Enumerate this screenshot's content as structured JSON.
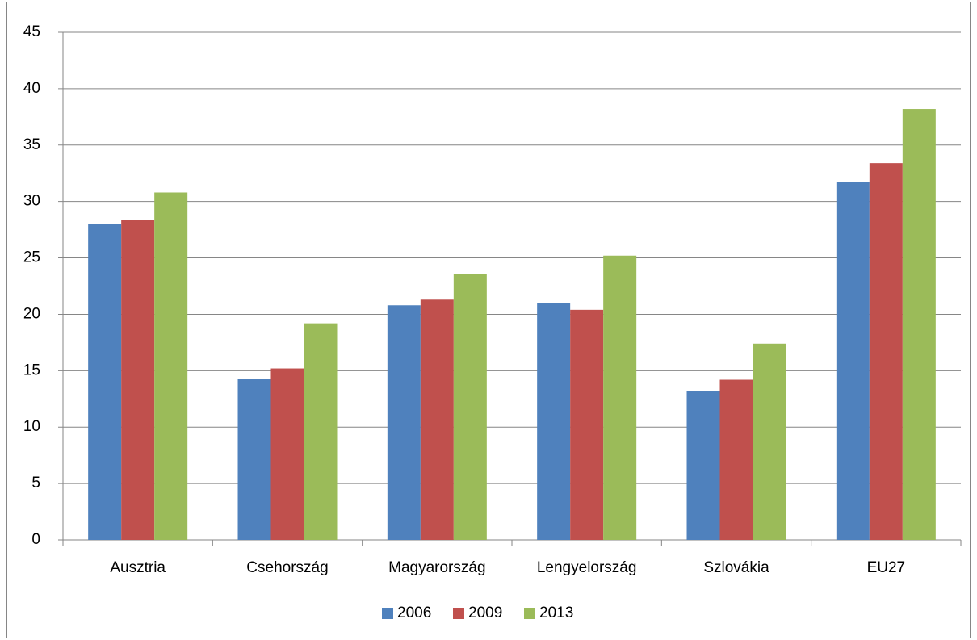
{
  "chart_data": {
    "type": "bar",
    "categories": [
      "Ausztria",
      "Csehország",
      "Magyarország",
      "Lengyelország",
      "Szlovákia",
      "EU27"
    ],
    "series": [
      {
        "name": "2006",
        "color": "#4f81bd",
        "values": [
          28.0,
          14.3,
          20.8,
          21.0,
          13.2,
          31.7
        ]
      },
      {
        "name": "2009",
        "color": "#c0504d",
        "values": [
          28.4,
          15.2,
          21.3,
          20.4,
          14.2,
          33.4
        ]
      },
      {
        "name": "2013",
        "color": "#9bbb59",
        "values": [
          30.8,
          19.2,
          23.6,
          25.2,
          17.4,
          38.2
        ]
      }
    ],
    "ylim": [
      0,
      45
    ],
    "yticks": [
      0,
      5,
      10,
      15,
      20,
      25,
      30,
      35,
      40,
      45
    ],
    "grid": true,
    "legend": "bottom"
  }
}
